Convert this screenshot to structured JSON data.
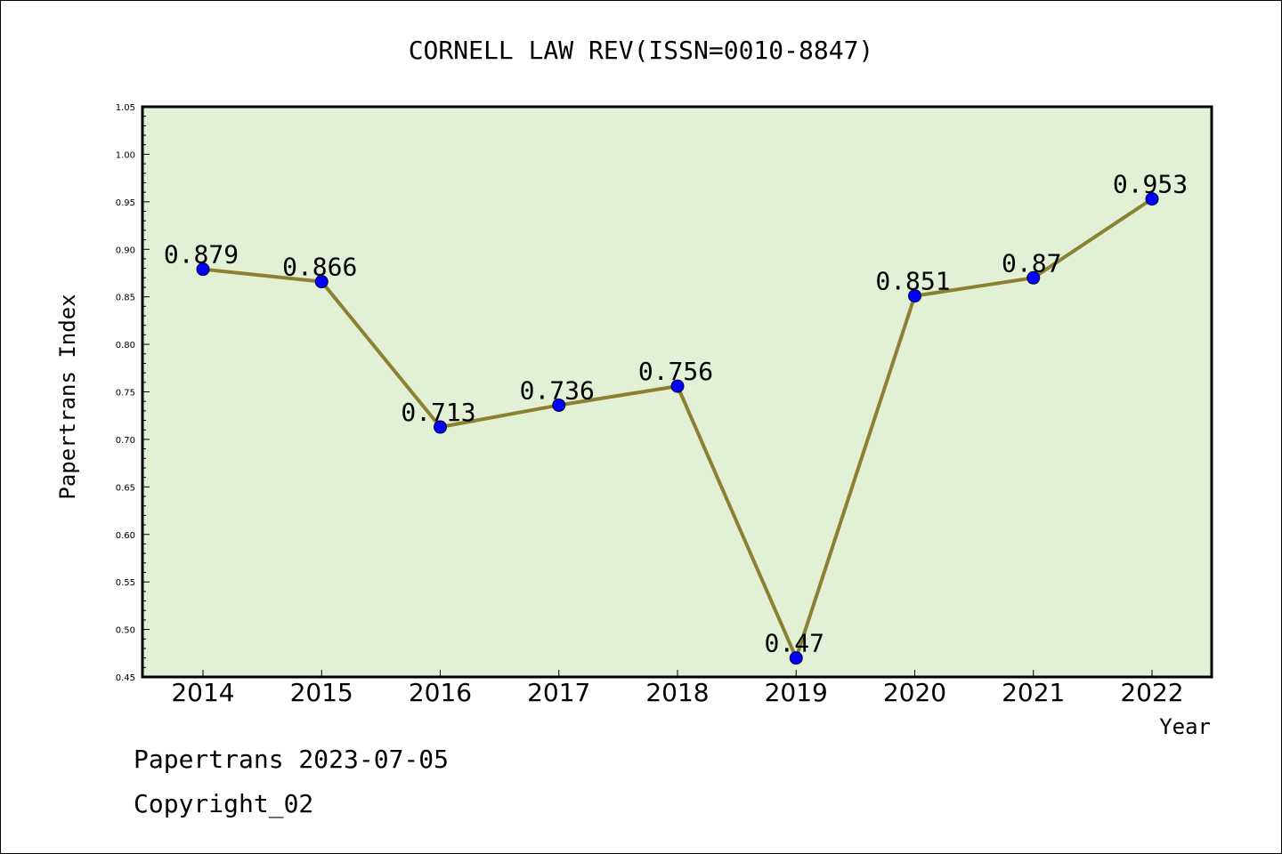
{
  "chart_data": {
    "type": "line",
    "title": "CORNELL LAW REV(ISSN=0010-8847)",
    "xlabel": "Year",
    "ylabel": "Papertrans Index",
    "categories": [
      "2014",
      "2015",
      "2016",
      "2017",
      "2018",
      "2019",
      "2020",
      "2021",
      "2022"
    ],
    "series": [
      {
        "values": [
          0.879,
          0.866,
          0.713,
          0.736,
          0.756,
          0.47,
          0.851,
          0.87,
          0.953
        ],
        "labels": [
          "0.879",
          "0.866",
          "0.713",
          "0.736",
          "0.756",
          "0.47",
          "0.851",
          "0.87",
          "0.953"
        ],
        "line_color": "#8b8133",
        "marker_color": "#0000ff"
      }
    ],
    "ylim": [
      0.45,
      1.05
    ],
    "yticks": [
      "0.45",
      "0.50",
      "0.55",
      "0.60",
      "0.65",
      "0.70",
      "0.75",
      "0.80",
      "0.85",
      "0.90",
      "0.95",
      "1.00",
      "1.05"
    ],
    "grid": false,
    "plot_background": "#e2f0d5"
  },
  "footer": {
    "line1": "Papertrans 2023-07-05",
    "line2": "Copyright_02"
  }
}
